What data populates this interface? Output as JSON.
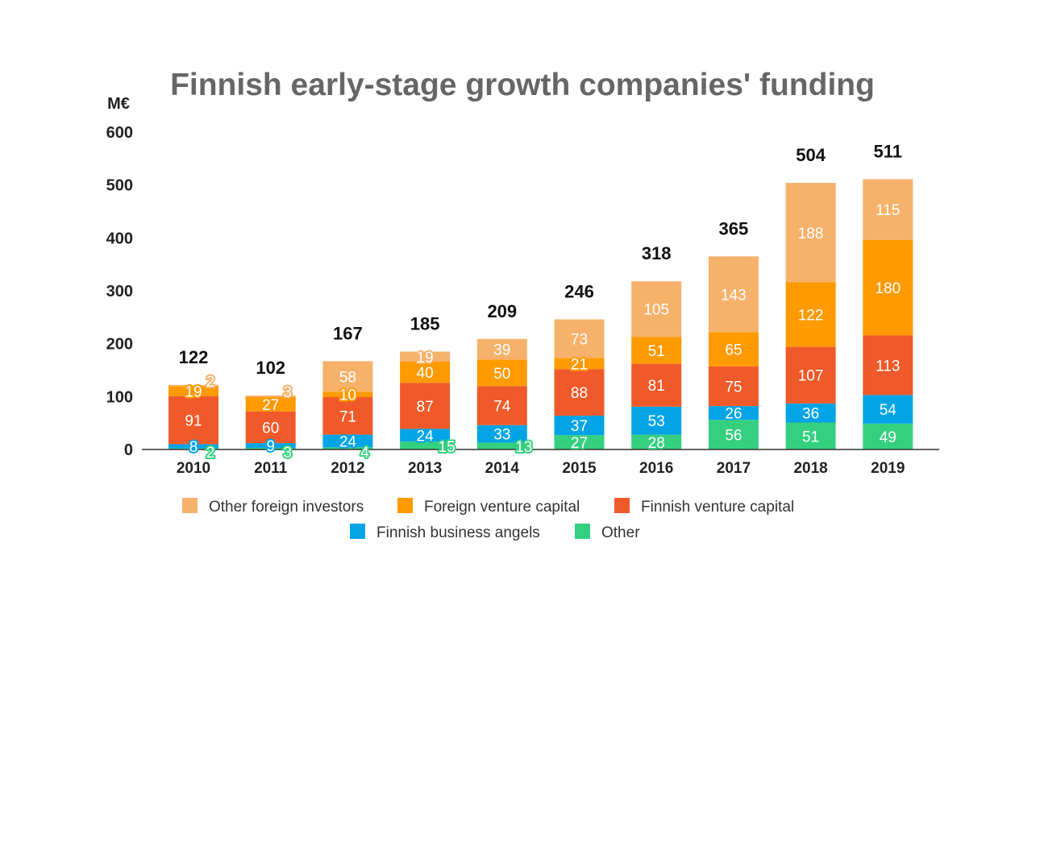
{
  "chart_data": {
    "type": "bar",
    "stacked": true,
    "title": "Finnish early-stage growth companies' funding",
    "ylabel": "M€",
    "xlabel": "",
    "ylim": [
      0,
      600
    ],
    "yticks": [
      "0",
      "100",
      "200",
      "300",
      "400",
      "500",
      "600"
    ],
    "grid": false,
    "legend_position": "bottom",
    "categories": [
      "2010",
      "2011",
      "2012",
      "2013",
      "2014",
      "2015",
      "2016",
      "2017",
      "2018",
      "2019"
    ],
    "totals": [
      122,
      102,
      167,
      185,
      209,
      246,
      318,
      365,
      504,
      511
    ],
    "series": [
      {
        "name": "Other",
        "color": "#35d07f",
        "values": [
          2,
          3,
          4,
          15,
          13,
          27,
          28,
          56,
          51,
          49
        ]
      },
      {
        "name": "Finnish business angels",
        "color": "#03a4e6",
        "values": [
          8,
          9,
          24,
          24,
          33,
          37,
          53,
          26,
          36,
          54
        ]
      },
      {
        "name": "Finnish venture capital",
        "color": "#f05a2a",
        "values": [
          91,
          60,
          71,
          87,
          74,
          88,
          81,
          75,
          107,
          113
        ]
      },
      {
        "name": "Foreign venture capital",
        "color": "#ff9a00",
        "values": [
          19,
          27,
          10,
          40,
          50,
          21,
          51,
          65,
          122,
          180
        ]
      },
      {
        "name": "Other foreign investors",
        "color": "#f6b26b",
        "values": [
          2,
          3,
          58,
          19,
          39,
          73,
          105,
          143,
          188,
          115
        ]
      }
    ],
    "legend_order": [
      "Other foreign investors",
      "Foreign venture capital",
      "Finnish venture capital",
      "Finnish business angels",
      "Other"
    ]
  }
}
